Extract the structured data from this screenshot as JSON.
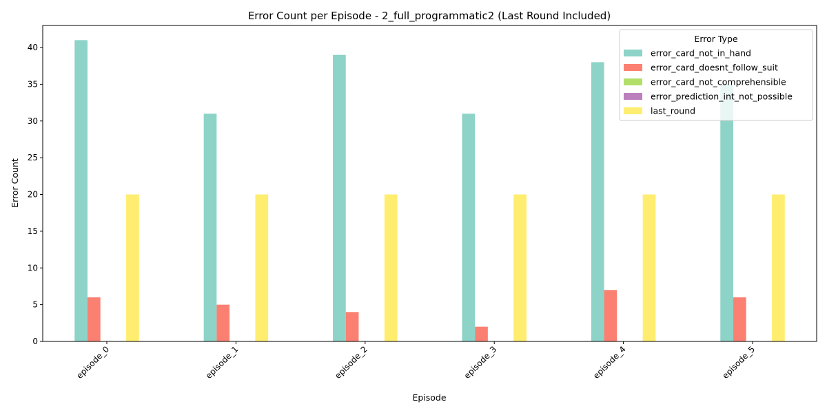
{
  "chart_data": {
    "type": "bar",
    "title": "Error Count per Episode - 2_full_programmatic2 (Last Round Included)",
    "xlabel": "Episode",
    "ylabel": "Error Count",
    "ylim": [
      0,
      43
    ],
    "yticks": [
      0,
      5,
      10,
      15,
      20,
      25,
      30,
      35,
      40
    ],
    "categories": [
      "episode_0",
      "episode_1",
      "episode_2",
      "episode_3",
      "episode_4",
      "episode_5"
    ],
    "legend": {
      "title": "Error Type",
      "placement": "top-right"
    },
    "grid": false,
    "series": [
      {
        "name": "error_card_not_in_hand",
        "color": "#8dd3c7",
        "values": [
          41,
          31,
          39,
          31,
          38,
          35
        ]
      },
      {
        "name": "error_card_doesnt_follow_suit",
        "color": "#fb8072",
        "values": [
          6,
          5,
          4,
          2,
          7,
          6
        ]
      },
      {
        "name": "error_card_not_comprehensible",
        "color": "#b3de69",
        "values": [
          0,
          0,
          0,
          0,
          0,
          0
        ]
      },
      {
        "name": "error_prediction_int_not_possible",
        "color": "#bc80bd",
        "values": [
          0,
          0,
          0,
          0,
          0,
          0
        ]
      },
      {
        "name": "last_round",
        "color": "#ffed6f",
        "values": [
          20,
          20,
          20,
          20,
          20,
          20
        ]
      }
    ]
  }
}
